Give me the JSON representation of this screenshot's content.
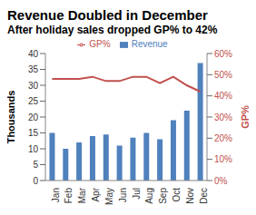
{
  "chart_data": {
    "type": "bar",
    "title": "Revenue Doubled in December",
    "subtitle": "After holiday sales dropped GP% to 42%",
    "categories": [
      "Jan",
      "Feb",
      "Mar",
      "Apr",
      "May",
      "Jun",
      "Jul",
      "Aug",
      "Sep",
      "Oct",
      "Nov",
      "Dec"
    ],
    "series": [
      {
        "name": "Revenue",
        "color": "#4f81bd",
        "values": [
          15,
          10,
          12,
          14,
          14.5,
          11,
          13.5,
          15,
          13,
          19,
          22,
          37
        ]
      },
      {
        "name": "GP%",
        "type": "line",
        "axis": "y2",
        "color": "#c0504d",
        "marker": "none",
        "line_style": "solid",
        "values": [
          48,
          48,
          48,
          49,
          47,
          47,
          49,
          49,
          46,
          49,
          45,
          42
        ]
      }
    ],
    "ylabel": "Thousands",
    "y2label": "GP%",
    "ylim": [
      0,
      40
    ],
    "yticks": [
      0,
      5,
      10,
      15,
      20,
      25,
      30,
      35,
      40
    ],
    "y2lim": [
      0,
      60
    ],
    "y2ticks": [
      {
        "value": 0,
        "label": "0%"
      },
      {
        "value": 10,
        "label": "10%"
      },
      {
        "value": 20,
        "label": "20%"
      },
      {
        "value": 30,
        "label": "30%"
      },
      {
        "value": 40,
        "label": "40%"
      },
      {
        "value": 50,
        "label": "50%"
      },
      {
        "value": 60,
        "label": "60%"
      }
    ],
    "legend": "top",
    "grid": false
  }
}
